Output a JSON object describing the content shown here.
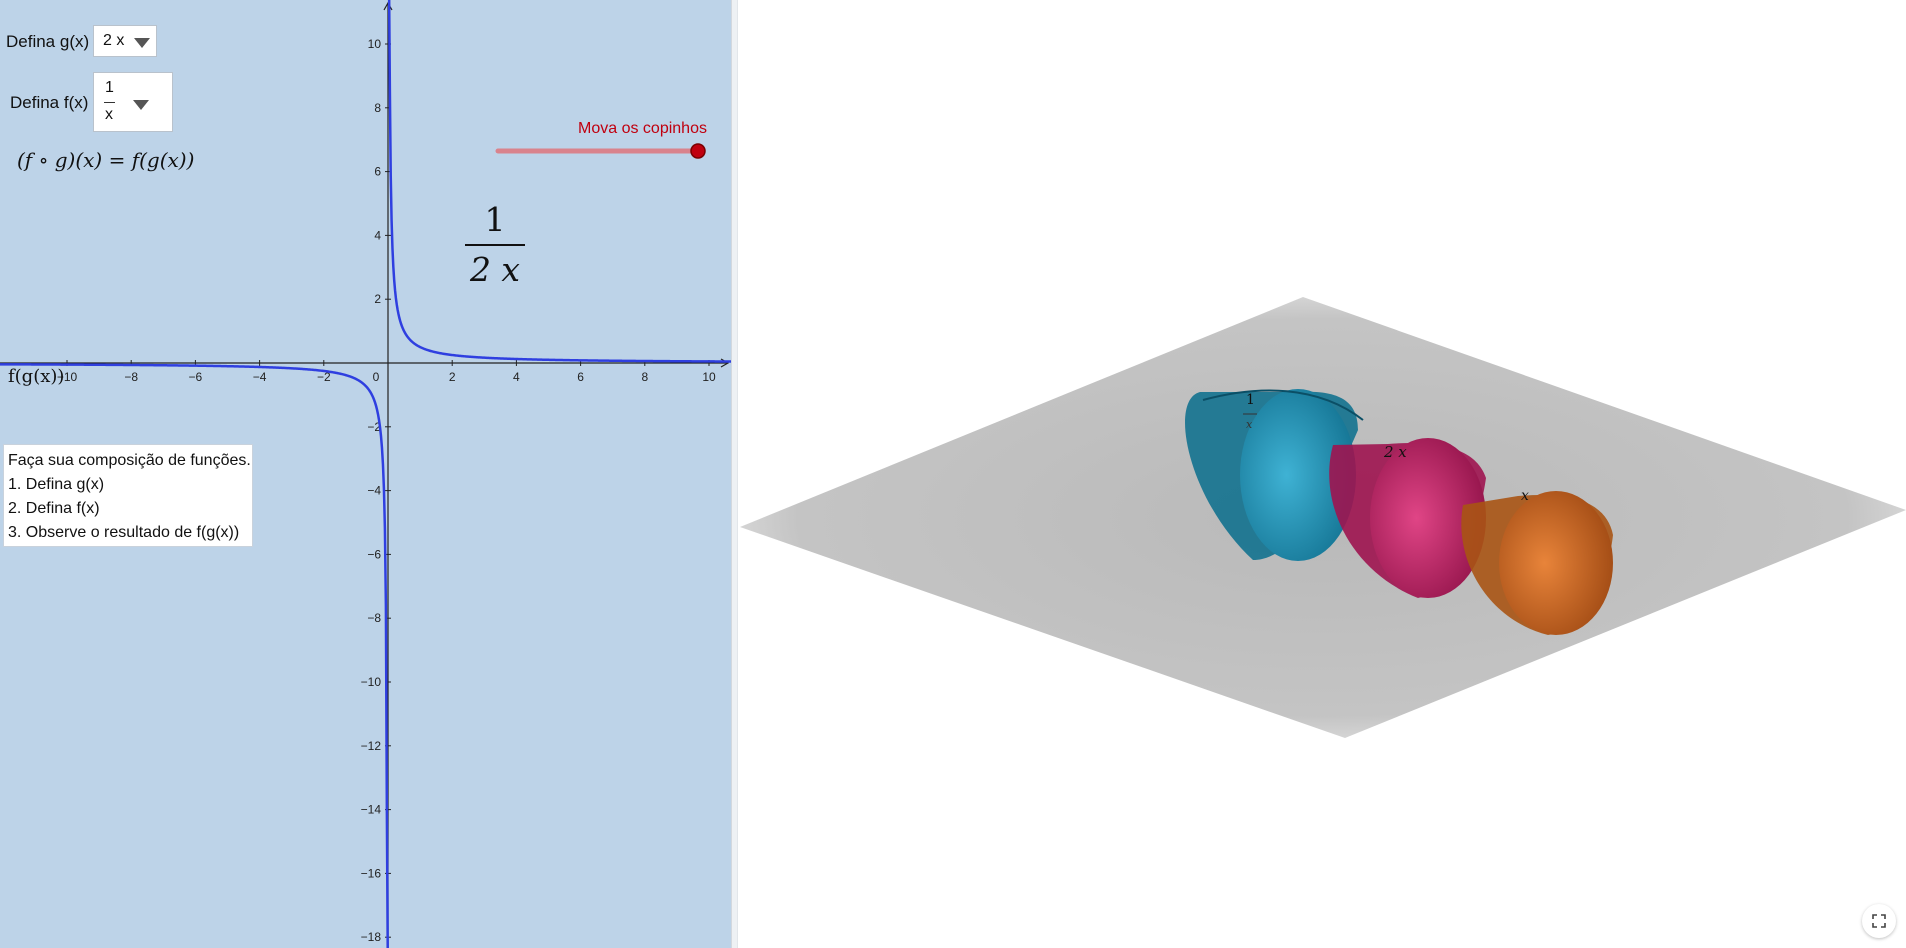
{
  "controls": {
    "g_label": "Defina g(x)",
    "g_value": "2 x",
    "f_label": "Defina f(x)",
    "f_value_num": "1",
    "f_value_den": "x",
    "composition_formula": "(f ∘ g)(x) = f(g(x))"
  },
  "result": {
    "numerator": "1",
    "denominator": "2 x"
  },
  "slider": {
    "label": "Mova os copinhos",
    "value": 1.0
  },
  "axes": {
    "x_ticks": [
      "−10",
      "−8",
      "−6",
      "−4",
      "−2",
      "0",
      "2",
      "4",
      "6",
      "8",
      "10"
    ],
    "y_ticks_pos": [
      "10",
      "8",
      "6",
      "4",
      "2"
    ],
    "y_ticks_neg": [
      "−2",
      "−4",
      "−6",
      "−8",
      "−10",
      "−12",
      "−14",
      "−16",
      "−18"
    ],
    "curve_label": "f(g(x))"
  },
  "instructions": {
    "lines": [
      "Faça sua composição de funções.",
      "1. Defina g(x)",
      "2. Defina f(x)",
      "3. Observe o resultado de f(g(x))"
    ]
  },
  "cups": [
    {
      "name": "blue",
      "label_num": "1",
      "label_den": "x",
      "color": "#1e93b8"
    },
    {
      "name": "magenta",
      "label": "2 x",
      "color": "#c2185b"
    },
    {
      "name": "orange",
      "label": "x",
      "color": "#d2691e"
    }
  ],
  "colors": {
    "graph_bg": "#bdd3e8",
    "curve": "#2f3fe0",
    "slider": "#c0000f"
  },
  "icons": {
    "fullscreen": "fullscreen-icon"
  }
}
